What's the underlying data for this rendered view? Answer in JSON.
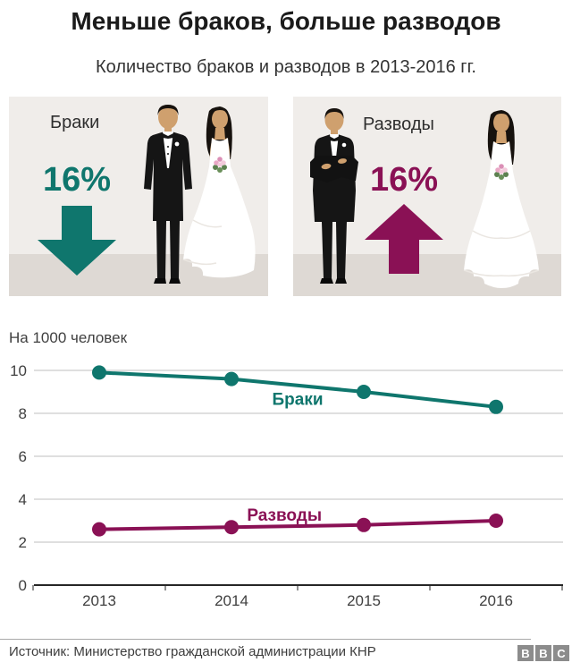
{
  "header": {
    "title": "Меньше браков, больше разводов",
    "subtitle": "Количество браков и разводов в 2013-2016 гг."
  },
  "panels": {
    "marriages": {
      "label": "Браки",
      "change": "16%",
      "direction": "down",
      "color": "#0f766d"
    },
    "divorces": {
      "label": "Разводы",
      "change": "16%",
      "direction": "up",
      "color": "#8a1155"
    }
  },
  "chart_data": {
    "type": "line",
    "unit_label": "На 1000 человек",
    "x": [
      2013,
      2014,
      2015,
      2016
    ],
    "xlabel": "",
    "ylabel": "На 1000 человек",
    "ylim": [
      0,
      10
    ],
    "yticks": [
      0,
      2,
      4,
      6,
      8,
      10
    ],
    "grid": true,
    "legend_position": "inline-labels",
    "series": [
      {
        "name": "Браки",
        "color": "#0f766d",
        "values": [
          9.9,
          9.6,
          9.0,
          8.3
        ],
        "label_at": {
          "x": 2014.5,
          "y": 8.4
        }
      },
      {
        "name": "Разводы",
        "color": "#8a1155",
        "values": [
          2.6,
          2.7,
          2.8,
          3.0
        ],
        "label_at": {
          "x": 2014.4,
          "y": 3.0
        }
      }
    ]
  },
  "footer": {
    "source": "Источник: Министерство гражданской администрации КНР",
    "logo_letters": [
      "B",
      "B",
      "C"
    ]
  },
  "colors": {
    "marriage_teal": "#0f766d",
    "divorce_magenta": "#8a1155",
    "panel_background": "#f0edea",
    "panel_floor": "#ded9d4"
  }
}
